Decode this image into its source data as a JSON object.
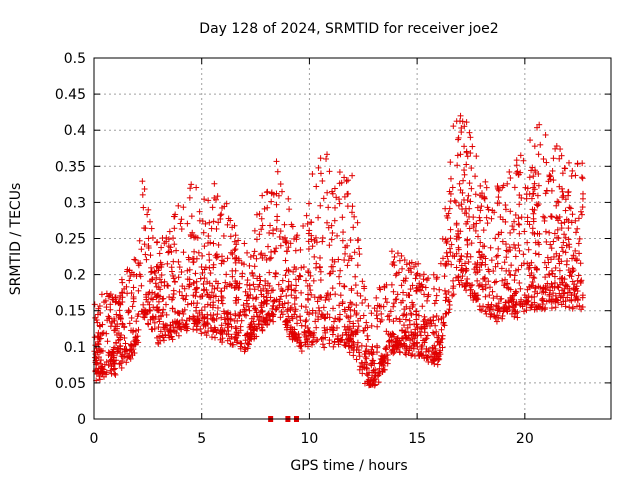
{
  "chart_data": {
    "type": "scatter",
    "title": "Day 128 of 2024, SRMTID for receiver joe2",
    "xlabel": "GPS time / hours",
    "ylabel": "SRMTID / TECUs",
    "xlim": [
      0,
      24
    ],
    "ylim": [
      0,
      0.5
    ],
    "x_ticks": [
      0,
      5,
      10,
      15,
      20
    ],
    "x_tick_labels": [
      "0",
      "5",
      "10",
      "15",
      "20"
    ],
    "y_ticks": [
      0,
      0.05,
      0.1,
      0.15,
      0.2,
      0.25,
      0.3,
      0.35,
      0.4,
      0.45,
      0.5
    ],
    "y_tick_labels": [
      "0",
      "0.05",
      "0.1",
      "0.15",
      "0.2",
      "0.25",
      "0.3",
      "0.35",
      "0.4",
      "0.45",
      "0.5"
    ],
    "grid": true,
    "marker": "plus",
    "color": "#e00000",
    "series": [
      {
        "name": "SRMTID",
        "points_note": "Dense scatter of several thousand points; generated from the summarized envelope below",
        "envelope": [
          {
            "t": 0.0,
            "base": 0.11,
            "spread": 0.06
          },
          {
            "t": 1.0,
            "base": 0.12,
            "spread": 0.06
          },
          {
            "t": 2.0,
            "base": 0.15,
            "spread": 0.08
          },
          {
            "t": 2.2,
            "base": 0.2,
            "spread": 0.15
          },
          {
            "t": 3.0,
            "base": 0.16,
            "spread": 0.08
          },
          {
            "t": 4.3,
            "base": 0.18,
            "spread": 0.14
          },
          {
            "t": 5.5,
            "base": 0.17,
            "spread": 0.16
          },
          {
            "t": 7.0,
            "base": 0.15,
            "spread": 0.09
          },
          {
            "t": 8.5,
            "base": 0.2,
            "spread": 0.16
          },
          {
            "t": 9.5,
            "base": 0.15,
            "spread": 0.1
          },
          {
            "t": 10.5,
            "base": 0.16,
            "spread": 0.22
          },
          {
            "t": 12.0,
            "base": 0.15,
            "spread": 0.18
          },
          {
            "t": 12.8,
            "base": 0.09,
            "spread": 0.06
          },
          {
            "t": 14.0,
            "base": 0.15,
            "spread": 0.09
          },
          {
            "t": 16.0,
            "base": 0.13,
            "spread": 0.07
          },
          {
            "t": 16.8,
            "base": 0.24,
            "spread": 0.21
          },
          {
            "t": 18.5,
            "base": 0.19,
            "spread": 0.12
          },
          {
            "t": 20.8,
            "base": 0.21,
            "spread": 0.2
          },
          {
            "t": 22.7,
            "base": 0.21,
            "spread": 0.14
          }
        ],
        "zero_values_at_hours": [
          8.2,
          9.0,
          9.4
        ]
      }
    ]
  }
}
